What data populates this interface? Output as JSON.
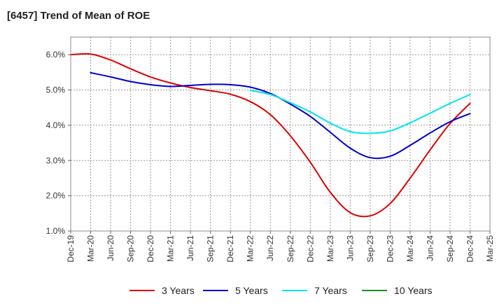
{
  "chart_data": {
    "type": "line",
    "title": "[6457]  Trend of Mean of ROE",
    "xlabel": "",
    "ylabel": "",
    "ylim": [
      1.0,
      6.5
    ],
    "yticks": [
      1.0,
      2.0,
      3.0,
      4.0,
      5.0,
      6.0
    ],
    "ytick_labels": [
      "1.0%",
      "2.0%",
      "3.0%",
      "4.0%",
      "5.0%",
      "6.0%"
    ],
    "x_tick_labels": [
      "Dec-19",
      "Mar-20",
      "Jun-20",
      "Sep-20",
      "Dec-20",
      "Mar-21",
      "Jun-21",
      "Sep-21",
      "Dec-21",
      "Mar-22",
      "Jun-22",
      "Sep-22",
      "Dec-22",
      "Mar-23",
      "Jun-23",
      "Sep-23",
      "Dec-23",
      "Mar-24",
      "Jun-24",
      "Sep-24",
      "Dec-24",
      "Mar-25"
    ],
    "grid": true,
    "legend_position": "bottom",
    "series": [
      {
        "name": "3 Years",
        "color": "#dd0000",
        "x": [
          0,
          1,
          2,
          3,
          4,
          5,
          6,
          7,
          8,
          9,
          10,
          11,
          12,
          13,
          14,
          15,
          16,
          17,
          18,
          19,
          20
        ],
        "values": [
          6.0,
          6.02,
          5.85,
          5.6,
          5.37,
          5.2,
          5.07,
          4.98,
          4.88,
          4.67,
          4.3,
          3.7,
          2.95,
          2.1,
          1.52,
          1.43,
          1.78,
          2.5,
          3.3,
          4.05,
          4.62
        ]
      },
      {
        "name": "5 Years",
        "color": "#0000cc",
        "x": [
          1,
          2,
          3,
          4,
          5,
          6,
          7,
          8,
          9,
          10,
          11,
          12,
          13,
          14,
          15,
          16,
          17,
          18,
          19,
          20
        ],
        "values": [
          5.49,
          5.37,
          5.24,
          5.15,
          5.1,
          5.13,
          5.16,
          5.15,
          5.08,
          4.9,
          4.6,
          4.25,
          3.8,
          3.35,
          3.08,
          3.12,
          3.43,
          3.78,
          4.1,
          4.33
        ]
      },
      {
        "name": "7 Years",
        "color": "#00e5ee",
        "x": [
          9,
          10,
          11,
          12,
          13,
          14,
          15,
          16,
          17,
          18,
          19,
          20
        ],
        "values": [
          4.99,
          4.87,
          4.64,
          4.38,
          4.06,
          3.82,
          3.77,
          3.84,
          4.07,
          4.34,
          4.62,
          4.87
        ]
      },
      {
        "name": "10 Years",
        "color": "#228b22",
        "x": [],
        "values": []
      }
    ]
  }
}
